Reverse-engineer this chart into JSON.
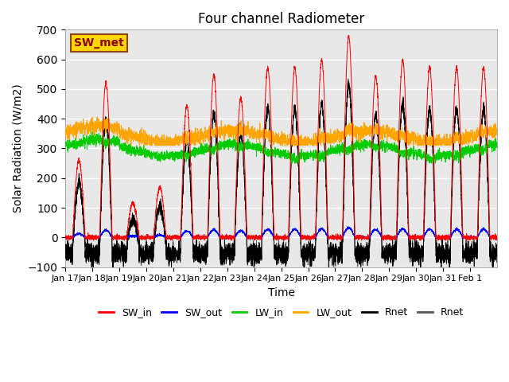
{
  "title": "Four channel Radiometer",
  "ylabel": "Solar Radiation (W/m2)",
  "xlabel": "Time",
  "ylim": [
    -100,
    700
  ],
  "yticks": [
    -100,
    0,
    100,
    200,
    300,
    400,
    500,
    600,
    700
  ],
  "annotation_text": "SW_met",
  "annotation_color": "#8B0000",
  "annotation_bg": "#FFD700",
  "annotation_edge": "#8B4513",
  "series_colors": {
    "SW_in": "#FF0000",
    "SW_out": "#0000FF",
    "LW_in": "#00CC00",
    "LW_out": "#FFA500",
    "Rnet_black": "#000000",
    "Rnet_dark": "#555555"
  },
  "legend_labels": [
    "SW_in",
    "SW_out",
    "LW_in",
    "LW_out",
    "Rnet",
    "Rnet"
  ],
  "legend_colors": [
    "#FF0000",
    "#0000FF",
    "#00CC00",
    "#FFA500",
    "#000000",
    "#555555"
  ],
  "xtick_labels": [
    "Jan 17",
    "Jan 18",
    "Jan 19",
    "Jan 20",
    "Jan 21",
    "Jan 22",
    "Jan 23",
    "Jan 24",
    "Jan 25",
    "Jan 26",
    "Jan 27",
    "Jan 28",
    "Jan 29",
    "Jan 30",
    "Jan 31",
    "Feb 1"
  ],
  "background_color": "#E8E8E8",
  "fig_bg": "#FFFFFF",
  "grid_color": "#FFFFFF",
  "num_points": 4000,
  "seed": 42
}
